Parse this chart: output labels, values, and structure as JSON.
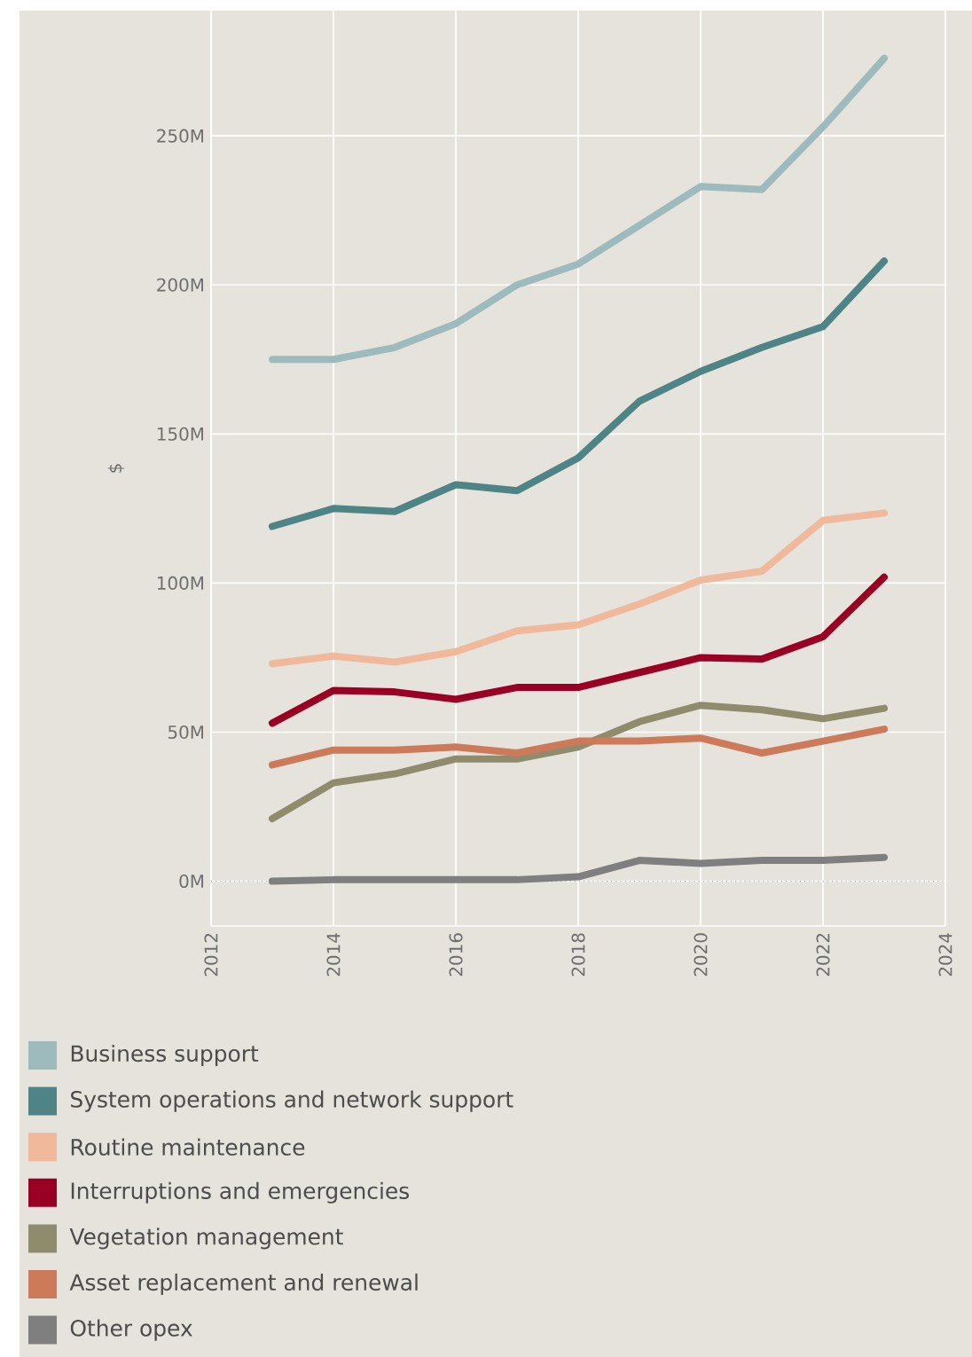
{
  "chart_data": {
    "type": "line",
    "ylabel": "$",
    "x": [
      2013,
      2014,
      2015,
      2016,
      2017,
      2018,
      2019,
      2020,
      2021,
      2022,
      2023
    ],
    "series": [
      {
        "name": "Business support",
        "color": "#9dbabc",
        "values": [
          175,
          175,
          179,
          187,
          200,
          207,
          220,
          233,
          232,
          253,
          276
        ]
      },
      {
        "name": "System operations and network support",
        "color": "#4f8486",
        "values": [
          119,
          125,
          124,
          133,
          131,
          142,
          161,
          171,
          179,
          186,
          208
        ]
      },
      {
        "name": "Routine maintenance",
        "color": "#f0b99c",
        "values": [
          73,
          75.5,
          73.5,
          77,
          84,
          86,
          93,
          101,
          104,
          121,
          123.5
        ]
      },
      {
        "name": "Interruptions and emergencies",
        "color": "#9a0024",
        "values": [
          53,
          64,
          63.5,
          61,
          65,
          65,
          70,
          75,
          74.5,
          82,
          102
        ]
      },
      {
        "name": "Vegetation management",
        "color": "#8f8c6e",
        "values": [
          21,
          33,
          36,
          41,
          41,
          45,
          53.5,
          59,
          57.5,
          54.5,
          58
        ]
      },
      {
        "name": "Asset replacement and renewal",
        "color": "#cc7a59",
        "values": [
          39,
          44,
          44,
          45,
          43,
          47,
          47,
          48,
          43,
          47,
          51
        ]
      },
      {
        "name": "Other opex",
        "color": "#7f7f80",
        "values": [
          0,
          0.5,
          0.5,
          0.5,
          0.5,
          1.5,
          7,
          6,
          7,
          7,
          8
        ]
      }
    ],
    "xlim": [
      2012,
      2024
    ],
    "xticks": [
      2012,
      2014,
      2016,
      2018,
      2020,
      2022,
      2024
    ],
    "ylim": [
      -15,
      292
    ],
    "yticks": [
      {
        "value": 0,
        "label": "0M"
      },
      {
        "value": 50,
        "label": "50M"
      },
      {
        "value": 100,
        "label": "100M"
      },
      {
        "value": 150,
        "label": "150M"
      },
      {
        "value": 200,
        "label": "200M"
      },
      {
        "value": 250,
        "label": "250M"
      }
    ],
    "ref_lines": [
      {
        "axis": "y",
        "value": 0,
        "line_style": "dotted",
        "color": "#b5b2aa"
      }
    ],
    "grid": true,
    "legend": "bottom"
  }
}
